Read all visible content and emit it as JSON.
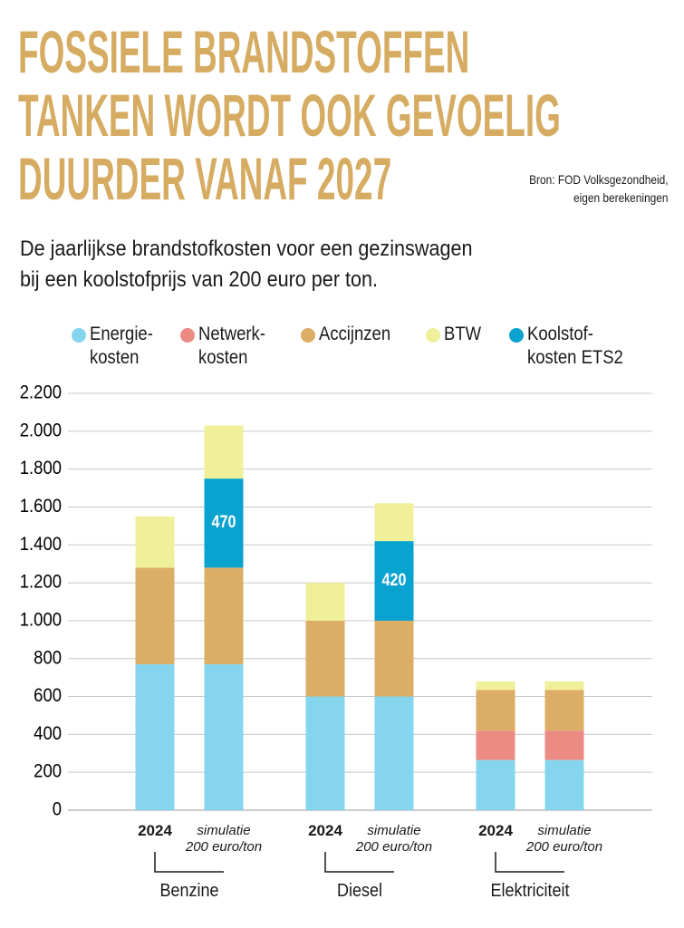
{
  "chart_data": {
    "type": "stacked_bar",
    "title": "FOSSIELE BRANDSTOFFEN\nTANKEN WORDT OOK GEVOELIG\nDUURDER VANAF 2027",
    "source": "Bron: FOD Volksgezondheid,\neigen berekeningen",
    "subtitle": "De jaarlijkse brandstofkosten voor een gezinswagen\nbij een koolstofprijs van 200 euro per ton.",
    "categories": [
      "2024",
      "simulatie\n200 euro/ton",
      "2024",
      "simulatie\n200 euro/ton",
      "2024",
      "simulatie\n200 euro/ton"
    ],
    "groups": [
      "Benzine",
      "Diesel",
      "Elektriciteit"
    ],
    "series": [
      {
        "name": "Energie-\nkosten",
        "color": "#86d5ef",
        "values": [
          770,
          770,
          600,
          600,
          265,
          265
        ]
      },
      {
        "name": "Netwerk-\nkosten",
        "color": "#ec8b84",
        "values": [
          null,
          null,
          null,
          null,
          155,
          155
        ]
      },
      {
        "name": "Accijnzen",
        "color": "#dcad64",
        "values": [
          510,
          510,
          400,
          400,
          215,
          215
        ]
      },
      {
        "name": "BTW",
        "color": "#f0f09b",
        "values": [
          270,
          280,
          200,
          200,
          45,
          45
        ]
      },
      {
        "name": "Koolstof-\nkosten ETS2",
        "color": "#0aa2cf",
        "values": [
          null,
          470,
          null,
          420,
          null,
          null
        ],
        "labels": true
      }
    ],
    "stack_order": [
      0,
      1,
      2,
      4,
      3
    ],
    "ylim": [
      0,
      2200
    ],
    "yticks": [
      0,
      200,
      400,
      600,
      800,
      {
        "value": 1000,
        "label": "1.000"
      },
      {
        "value": 1200,
        "label": "1.200"
      },
      {
        "value": 1400,
        "label": "1.400"
      },
      {
        "value": 1600,
        "label": "1.600"
      },
      {
        "value": 1800,
        "label": "1.800"
      },
      {
        "value": 2000,
        "label": "2.000"
      },
      {
        "value": 2200,
        "label": "2.200"
      }
    ],
    "grid": true
  }
}
